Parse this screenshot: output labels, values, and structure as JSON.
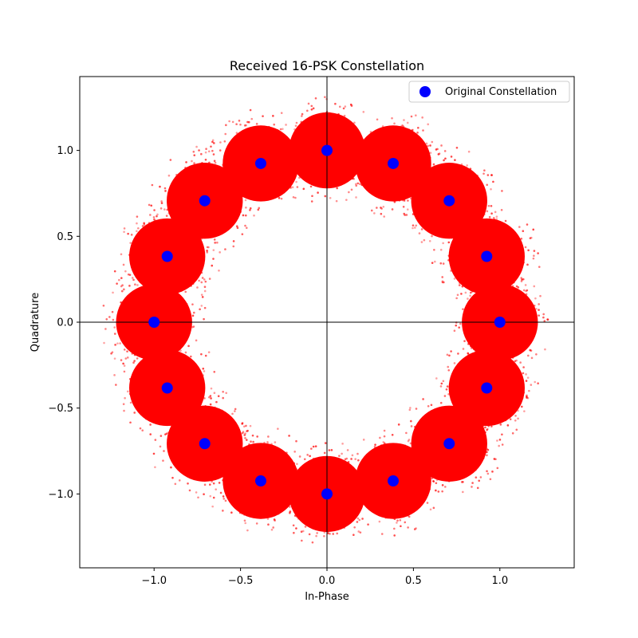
{
  "chart_data": {
    "type": "scatter",
    "title": "Received 16-PSK Constellation",
    "xlabel": "In-Phase",
    "ylabel": "Quadrature",
    "xlim": [
      -1.43,
      1.43
    ],
    "ylim": [
      -1.43,
      1.43
    ],
    "xticks": [
      -1.0,
      -0.5,
      0.0,
      0.5,
      1.0
    ],
    "yticks": [
      -1.0,
      -0.5,
      0.0,
      0.5,
      1.0
    ],
    "xtick_labels": [
      "−1.0",
      "−0.5",
      "0.0",
      "0.5",
      "1.0"
    ],
    "ytick_labels": [
      "−1.0",
      "−0.5",
      "0.0",
      "0.5",
      "1.0"
    ],
    "grid": false,
    "axis_lines_at_zero": true,
    "legend": {
      "placement": "top-right",
      "entries": [
        "Original Constellation"
      ]
    },
    "series": [
      {
        "name": "",
        "kind": "received-noisy-samples",
        "color": "#ff0000",
        "noise_spread": 0.22,
        "centers": "original"
      },
      {
        "name": "Original Constellation",
        "color": "#0000ff",
        "points": [
          {
            "x": 1.0,
            "y": 0.0
          },
          {
            "x": 0.924,
            "y": 0.383
          },
          {
            "x": 0.707,
            "y": 0.707
          },
          {
            "x": 0.383,
            "y": 0.924
          },
          {
            "x": 0.0,
            "y": 1.0
          },
          {
            "x": -0.383,
            "y": 0.924
          },
          {
            "x": -0.707,
            "y": 0.707
          },
          {
            "x": -0.924,
            "y": 0.383
          },
          {
            "x": -1.0,
            "y": 0.0
          },
          {
            "x": -0.924,
            "y": -0.383
          },
          {
            "x": -0.707,
            "y": -0.707
          },
          {
            "x": -0.383,
            "y": -0.924
          },
          {
            "x": 0.0,
            "y": -1.0
          },
          {
            "x": 0.383,
            "y": -0.924
          },
          {
            "x": 0.707,
            "y": -0.707
          },
          {
            "x": 0.924,
            "y": -0.383
          }
        ]
      }
    ]
  }
}
